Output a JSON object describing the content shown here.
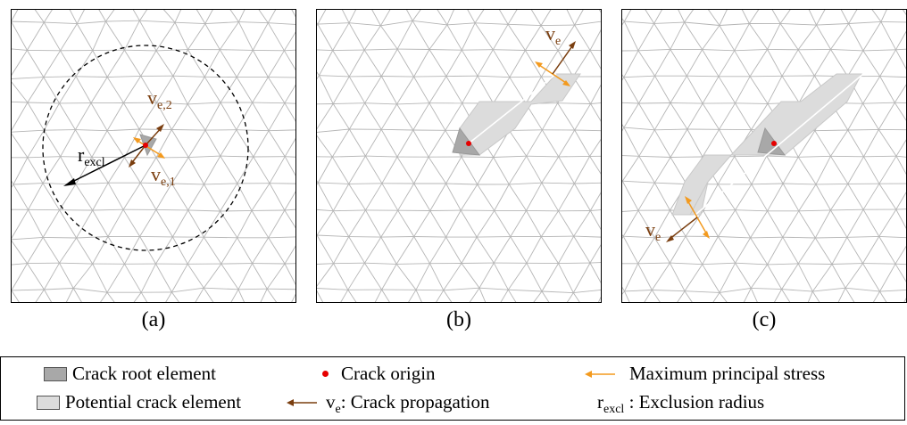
{
  "panels": {
    "a": {
      "caption": "(a)",
      "ve2_main": "v",
      "ve2_sub": "e,2",
      "ve1_main": "v",
      "ve1_sub": "e,1",
      "rexcl_main": "r",
      "rexcl_sub": "excl"
    },
    "b": {
      "caption": "(b)",
      "ve_main": "v",
      "ve_sub": "e"
    },
    "c": {
      "caption": "(c)",
      "ve_main": "v",
      "ve_sub": "e"
    }
  },
  "legend": {
    "root_element": "Crack  root element",
    "potential_element": "Potential crack element",
    "crack_origin": "Crack origin",
    "propagation_prefix": "v",
    "propagation_sub": "e",
    "propagation_text": ": Crack propagation",
    "max_principal_stress": "Maximum  principal stress",
    "exclusion_main": "r",
    "exclusion_sub": "excl",
    "exclusion_text": " : Exclusion radius"
  },
  "colors": {
    "mesh": "#b5b5b5",
    "root_fill": "#a8a8a8",
    "potential_fill": "#dcdcdc",
    "origin": "#e60000",
    "propagation_arrow": "#7a3e0f",
    "stress_arrow": "#f39a1e"
  }
}
